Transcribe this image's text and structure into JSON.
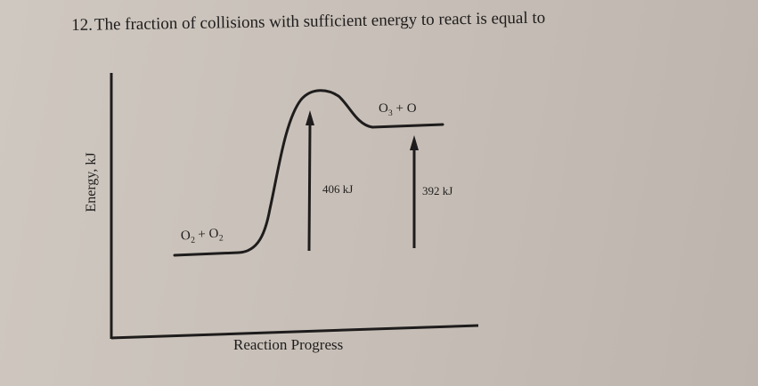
{
  "question": {
    "number": "12.",
    "text": "The fraction of collisions with sufficient energy to react is equal to"
  },
  "diagram": {
    "y_axis_label": "Energy, kJ",
    "x_axis_label": "Reaction Progress",
    "reactants_label": {
      "a": "O",
      "a_sub": "2",
      "plus": "+",
      "b": "O",
      "b_sub": "2"
    },
    "products_label": {
      "a": "O",
      "a_sub": "3",
      "plus": "+",
      "b": "O"
    },
    "forward_activation_energy": "406 kJ",
    "reverse_activation_energy": "392 kJ"
  },
  "colors": {
    "ink": "#1e1c1c",
    "paper": "#cfc8c0"
  }
}
